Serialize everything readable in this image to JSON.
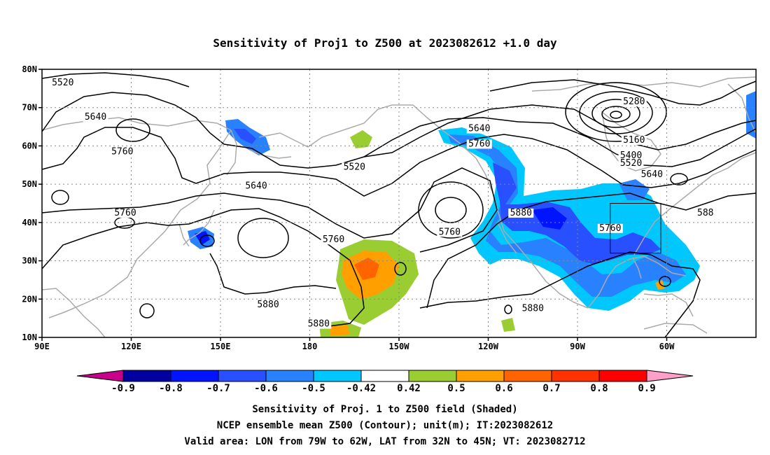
{
  "title": "Sensitivity of Proj1 to Z500 at 2023082612 +1.0 day",
  "map": {
    "lon_labels": [
      "90E",
      "120E",
      "150E",
      "180",
      "150W",
      "120W",
      "90W",
      "60W"
    ],
    "lat_labels": [
      "80N",
      "70N",
      "60N",
      "50N",
      "40N",
      "30N",
      "20N",
      "10N"
    ],
    "contour_labels": [
      {
        "text": "5520",
        "lon": 97,
        "lat": 76
      },
      {
        "text": "5640",
        "lon": 108,
        "lat": 67
      },
      {
        "text": "5760",
        "lon": 117,
        "lat": 58
      },
      {
        "text": "5640",
        "lon": 162,
        "lat": 49
      },
      {
        "text": "5520",
        "lon": 195,
        "lat": 54
      },
      {
        "text": "5760",
        "lon": 118,
        "lat": 42
      },
      {
        "text": "5760",
        "lon": 188,
        "lat": 35
      },
      {
        "text": "5880",
        "lon": 166,
        "lat": 18
      },
      {
        "text": "5880",
        "lon": 183,
        "lat": 13
      },
      {
        "text": "5640",
        "lon": 237,
        "lat": 64
      },
      {
        "text": "5760",
        "lon": 237,
        "lat": 60
      },
      {
        "text": "5760",
        "lon": 227,
        "lat": 37
      },
      {
        "text": "5880",
        "lon": 251,
        "lat": 42
      },
      {
        "text": "5880",
        "lon": 255,
        "lat": 17
      },
      {
        "text": "5280",
        "lon": 289,
        "lat": 71
      },
      {
        "text": "5160",
        "lon": 289,
        "lat": 61
      },
      {
        "text": "5400",
        "lon": 288,
        "lat": 57
      },
      {
        "text": "5520",
        "lon": 288,
        "lat": 55
      },
      {
        "text": "5640",
        "lon": 295,
        "lat": 52
      },
      {
        "text": "5760",
        "lon": 281,
        "lat": 38
      },
      {
        "text": "588",
        "lon": 313,
        "lat": 42
      }
    ],
    "valid_area": {
      "lon": [
        281,
        298
      ],
      "lat": [
        32,
        45
      ]
    },
    "colors": {
      "ocean_bg": "#ffffff",
      "coast": "#aaaaaa",
      "contour": "#000000",
      "box": "#000000"
    }
  },
  "colorbar": {
    "labels": [
      "-0.9",
      "-0.8",
      "-0.7",
      "-0.6",
      "-0.5",
      "-0.42",
      "0.42",
      "0.5",
      "0.6",
      "0.7",
      "0.8",
      "0.9"
    ],
    "colors": [
      "#c8008c",
      "#0000a0",
      "#0014ff",
      "#2850ff",
      "#2882ff",
      "#00c8ff",
      "#ffffff",
      "#9acd32",
      "#ffa000",
      "#ff6400",
      "#ff3200",
      "#ff0000",
      "#ffa0c8"
    ]
  },
  "caption": {
    "line1": "Sensitivity of Proj. 1 to Z500 field (Shaded)",
    "line2": "NCEP ensemble mean Z500 (Contour); unit(m); IT:2023082612",
    "line3": "Valid area: LON from 79W to 62W, LAT from 32N to 45N; VT: 2023082712"
  }
}
